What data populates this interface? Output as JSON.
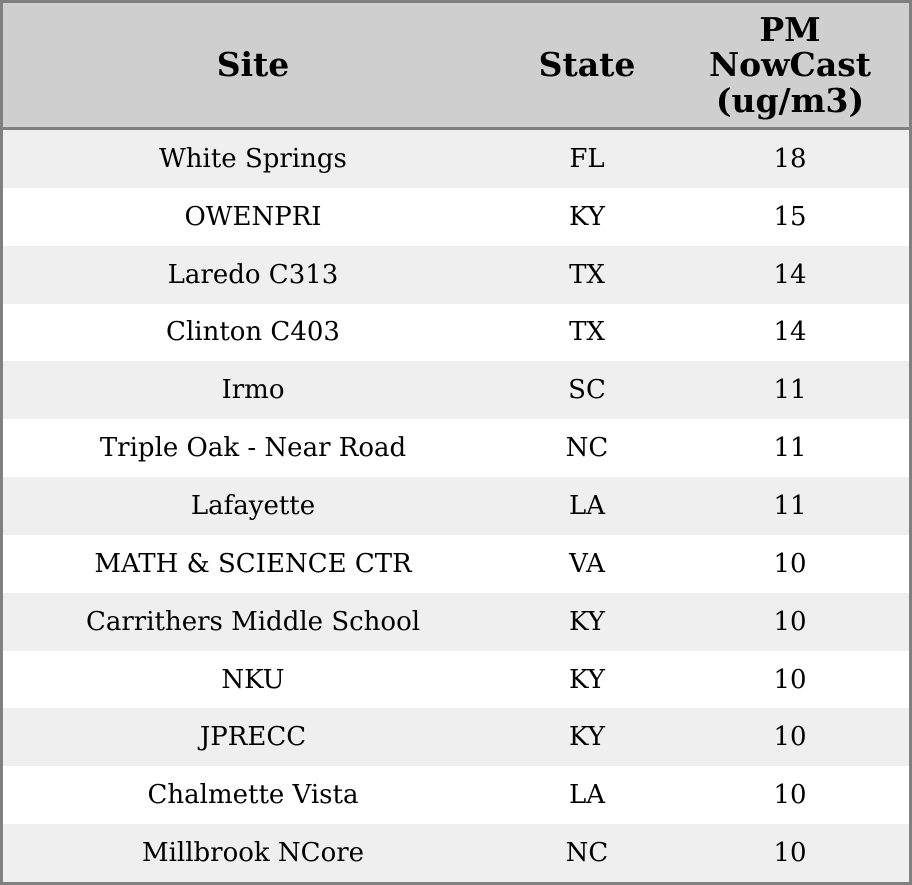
{
  "table": {
    "header": [
      "Site",
      "State",
      "PM NowCast (ug/m3)"
    ],
    "rows": [
      [
        "White Springs",
        "FL",
        18
      ],
      [
        "OWENPRI",
        "KY",
        15
      ],
      [
        "Laredo C313",
        "TX",
        14
      ],
      [
        "Clinton C403",
        "TX",
        14
      ],
      [
        "Irmo",
        "SC",
        11
      ],
      [
        "Triple Oak - Near Road",
        "NC",
        11
      ],
      [
        "Lafayette",
        "LA",
        11
      ],
      [
        "MATH & SCIENCE CTR",
        "VA",
        10
      ],
      [
        "Carrithers Middle School",
        "KY",
        10
      ],
      [
        "NKU",
        "KY",
        10
      ],
      [
        "JPRECC",
        "KY",
        10
      ],
      [
        "Chalmette Vista",
        "LA",
        10
      ],
      [
        "Millbrook NCore",
        "NC",
        10
      ]
    ]
  }
}
